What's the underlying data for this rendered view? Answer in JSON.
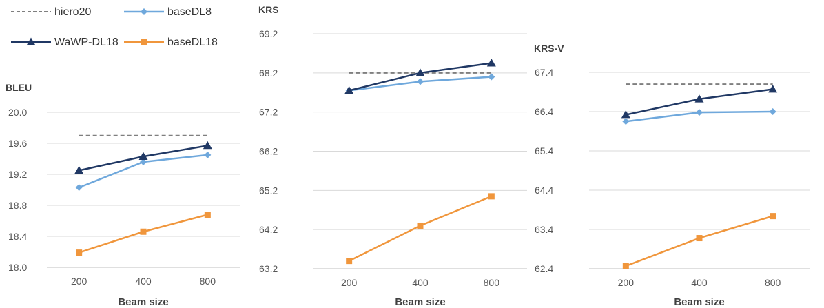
{
  "colors": {
    "hiero20": "#7f7f7f",
    "baseDL8": "#6fa8dc",
    "WaWP-DL18": "#203864",
    "baseDL18": "#f0963c",
    "grid": "#d9d9d9",
    "axis": "#bfbfbf"
  },
  "legend": {
    "entries": [
      {
        "key": "hiero20",
        "label": "hiero20",
        "marker": "none",
        "dash": true
      },
      {
        "key": "baseDL8",
        "label": "baseDL8",
        "marker": "diamond",
        "dash": false
      },
      {
        "key": "WaWP-DL18",
        "label": "WaWP-DL18",
        "marker": "triangle",
        "dash": false
      },
      {
        "key": "baseDL18",
        "label": "baseDL18",
        "marker": "square",
        "dash": false
      }
    ]
  },
  "chart_data": [
    {
      "type": "line",
      "title": "BLEU",
      "xlabel": "Beam size",
      "ylabel": "",
      "categories": [
        "200",
        "400",
        "800"
      ],
      "ylim": [
        18.0,
        20.0
      ],
      "yticks": [
        "18.0",
        "18.4",
        "18.8",
        "19.2",
        "19.6",
        "20.0"
      ],
      "grid": true,
      "series": [
        {
          "name": "hiero20",
          "values": [
            19.7,
            19.7,
            19.7
          ]
        },
        {
          "name": "baseDL8",
          "values": [
            19.03,
            19.36,
            19.45
          ]
        },
        {
          "name": "WaWP-DL18",
          "values": [
            19.25,
            19.43,
            19.57
          ]
        },
        {
          "name": "baseDL18",
          "values": [
            18.19,
            18.46,
            18.68
          ]
        }
      ]
    },
    {
      "type": "line",
      "title": "KRS",
      "xlabel": "Beam size",
      "ylabel": "",
      "categories": [
        "200",
        "400",
        "800"
      ],
      "ylim": [
        63.2,
        69.2
      ],
      "yticks": [
        "63.2",
        "64.2",
        "65.2",
        "66.2",
        "67.2",
        "68.2",
        "69.2"
      ],
      "grid": true,
      "series": [
        {
          "name": "hiero20",
          "values": [
            68.2,
            68.2,
            68.2
          ]
        },
        {
          "name": "baseDL8",
          "values": [
            67.75,
            67.98,
            68.1
          ]
        },
        {
          "name": "WaWP-DL18",
          "values": [
            67.75,
            68.2,
            68.45
          ]
        },
        {
          "name": "baseDL18",
          "values": [
            63.4,
            64.3,
            65.05
          ]
        }
      ]
    },
    {
      "type": "line",
      "title": "KRS-V",
      "xlabel": "Beam size",
      "ylabel": "",
      "categories": [
        "200",
        "400",
        "800"
      ],
      "ylim": [
        62.4,
        67.4
      ],
      "yticks": [
        "62.4",
        "63.4",
        "64.4",
        "65.4",
        "66.4",
        "67.4"
      ],
      "grid": true,
      "series": [
        {
          "name": "hiero20",
          "values": [
            67.1,
            67.1,
            67.1
          ]
        },
        {
          "name": "baseDL8",
          "values": [
            66.15,
            66.38,
            66.4
          ]
        },
        {
          "name": "WaWP-DL18",
          "values": [
            66.32,
            66.72,
            66.97
          ]
        },
        {
          "name": "baseDL18",
          "values": [
            62.47,
            63.18,
            63.74
          ]
        }
      ]
    }
  ]
}
